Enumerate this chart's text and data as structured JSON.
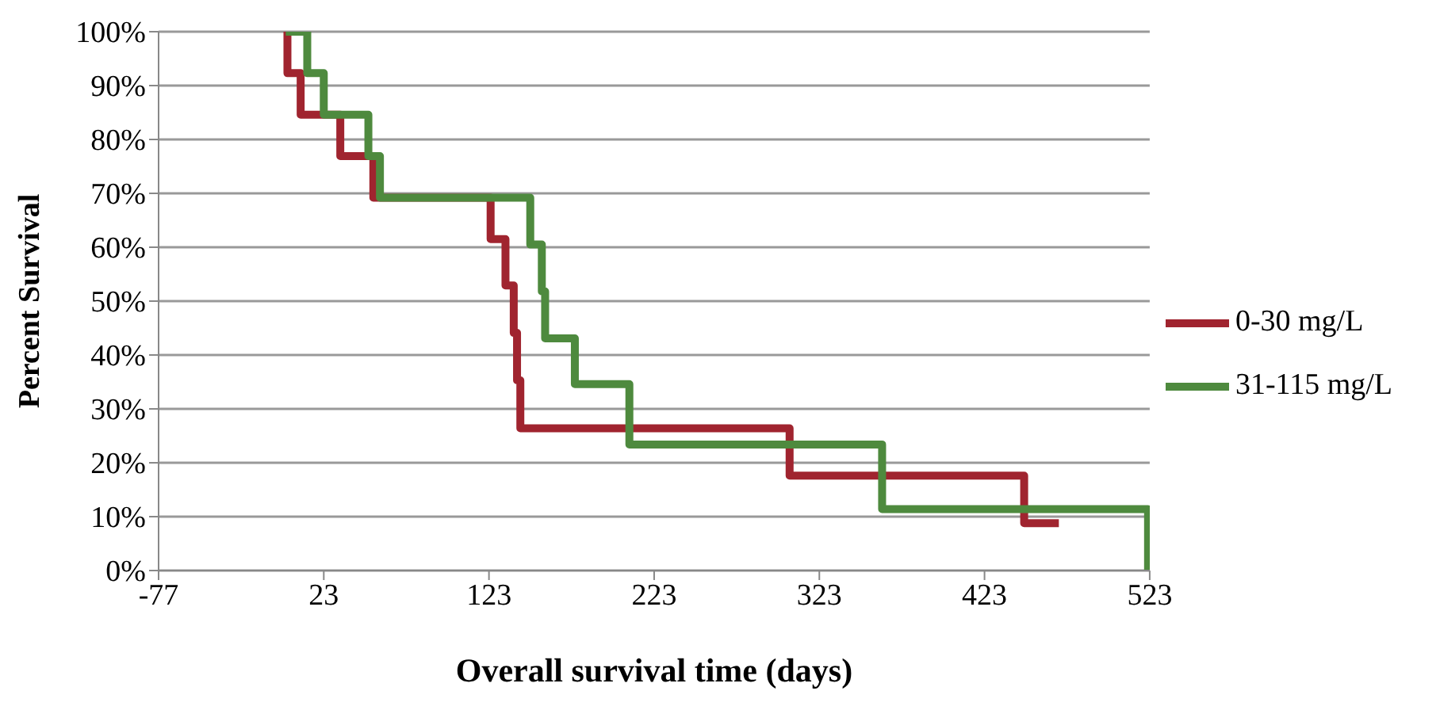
{
  "chart_data": {
    "type": "step",
    "xlabel": "Overall survival time (days)",
    "ylabel": "Percent Survival",
    "xlim": [
      -77,
      523
    ],
    "xticks": [
      -77,
      23,
      123,
      223,
      323,
      423,
      523
    ],
    "ylim": [
      0,
      100
    ],
    "yticks": [
      {
        "value": 0,
        "label": "0%"
      },
      {
        "value": 10,
        "label": "10%"
      },
      {
        "value": 20,
        "label": "20%"
      },
      {
        "value": 30,
        "label": "30%"
      },
      {
        "value": 40,
        "label": "40%"
      },
      {
        "value": 50,
        "label": "50%"
      },
      {
        "value": 60,
        "label": "60%"
      },
      {
        "value": 70,
        "label": "70%"
      },
      {
        "value": 80,
        "label": "80%"
      },
      {
        "value": 90,
        "label": "90%"
      },
      {
        "value": 100,
        "label": "100%"
      }
    ],
    "grid": "y",
    "legend": "right",
    "marker": "none",
    "line_style": "solid",
    "series": [
      {
        "name": "0-30 mg/L",
        "color": "#a0242f",
        "x": [
          0,
          1,
          9,
          33,
          53,
          124,
          133,
          138,
          140,
          142,
          305,
          447,
          468
        ],
        "values": [
          100,
          92.3,
          84.6,
          76.9,
          69.2,
          61.5,
          52.9,
          44.1,
          35.3,
          26.4,
          17.6,
          8.8,
          8.8
        ]
      },
      {
        "name": "31-115 mg/L",
        "color": "#4e8a3e",
        "x": [
          0,
          13,
          23,
          50,
          57,
          148,
          155,
          157,
          175,
          208,
          361,
          522
        ],
        "values": [
          100,
          92.3,
          84.6,
          76.9,
          69.2,
          60.5,
          51.8,
          43.1,
          34.6,
          23.4,
          11.4,
          0
        ]
      }
    ]
  }
}
